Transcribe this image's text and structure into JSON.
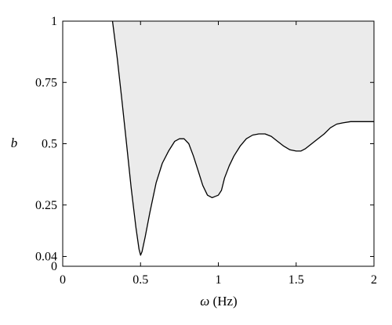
{
  "chart_data": {
    "type": "area",
    "xlabel_symbol": "ω",
    "xlabel_unit": " (Hz)",
    "ylabel": "b",
    "xlim": [
      0,
      2
    ],
    "ylim": [
      0,
      1
    ],
    "x_ticks": [
      0,
      0.5,
      1,
      1.5,
      2
    ],
    "x_tick_labels": [
      "0",
      "0.5",
      "1",
      "1.5",
      "2"
    ],
    "y_ticks": [
      0,
      0.04,
      0.25,
      0.5,
      0.75,
      1
    ],
    "y_tick_labels": [
      "0",
      "0.04",
      "0.25",
      "0.5",
      "0.75",
      "1"
    ],
    "grid": false,
    "fill_color": "#ebebeb",
    "line_color": "#000000",
    "boundary": {
      "x": [
        0.32,
        0.35,
        0.38,
        0.41,
        0.44,
        0.47,
        0.49,
        0.5,
        0.51,
        0.53,
        0.56,
        0.6,
        0.64,
        0.68,
        0.72,
        0.75,
        0.78,
        0.81,
        0.84,
        0.87,
        0.9,
        0.93,
        0.96,
        0.98,
        1.0,
        1.02,
        1.04,
        1.07,
        1.1,
        1.14,
        1.18,
        1.22,
        1.26,
        1.3,
        1.34,
        1.38,
        1.42,
        1.46,
        1.5,
        1.53,
        1.56,
        1.6,
        1.64,
        1.68,
        1.72,
        1.76,
        1.8,
        1.85,
        1.9,
        1.95,
        2.0
      ],
      "y": [
        1.0,
        0.85,
        0.68,
        0.5,
        0.32,
        0.16,
        0.07,
        0.045,
        0.06,
        0.12,
        0.22,
        0.34,
        0.42,
        0.47,
        0.51,
        0.52,
        0.52,
        0.5,
        0.45,
        0.39,
        0.33,
        0.29,
        0.28,
        0.285,
        0.29,
        0.31,
        0.36,
        0.41,
        0.45,
        0.49,
        0.52,
        0.535,
        0.54,
        0.54,
        0.53,
        0.51,
        0.49,
        0.475,
        0.47,
        0.47,
        0.48,
        0.5,
        0.52,
        0.54,
        0.565,
        0.58,
        0.585,
        0.59,
        0.59,
        0.59,
        0.59
      ]
    }
  }
}
